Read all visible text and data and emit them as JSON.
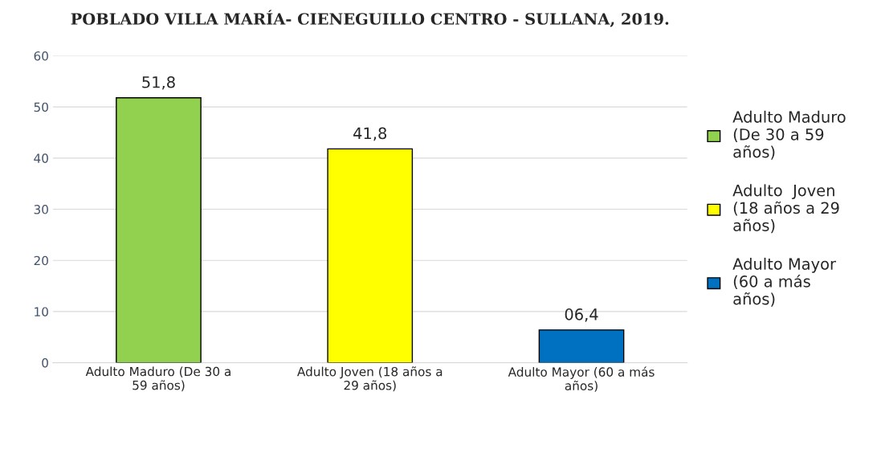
{
  "chart_data": {
    "type": "bar",
    "title": "POBLADO VILLA MARÍA- CIENEGUILLO CENTRO - SULLANA, 2019.",
    "categories": [
      "Adulto Maduro (De 30 a\n59 años)",
      "Adulto Joven (18 años a\n29 años)",
      "Adulto Mayor (60 a más\naños)"
    ],
    "series": [
      {
        "name": "Adulto Maduro\n(De 30 a 59\naños)",
        "color": "#92d050",
        "values": [
          51.8,
          null,
          null
        ],
        "value_labels": [
          "51,8",
          null,
          null
        ]
      },
      {
        "name": "Adulto  Joven\n(18 años a 29\naños)",
        "color": "#ffff00",
        "values": [
          null,
          41.8,
          null
        ],
        "value_labels": [
          null,
          "41,8",
          null
        ]
      },
      {
        "name": "Adulto Mayor\n(60 a más\naños)",
        "color": "#0070c0",
        "values": [
          null,
          null,
          6.4
        ],
        "value_labels": [
          null,
          null,
          "06,4"
        ]
      }
    ],
    "ylim": [
      0,
      60
    ],
    "yticks": [
      0,
      10,
      20,
      30,
      40,
      50,
      60
    ],
    "grid": "y",
    "legend": "right"
  }
}
